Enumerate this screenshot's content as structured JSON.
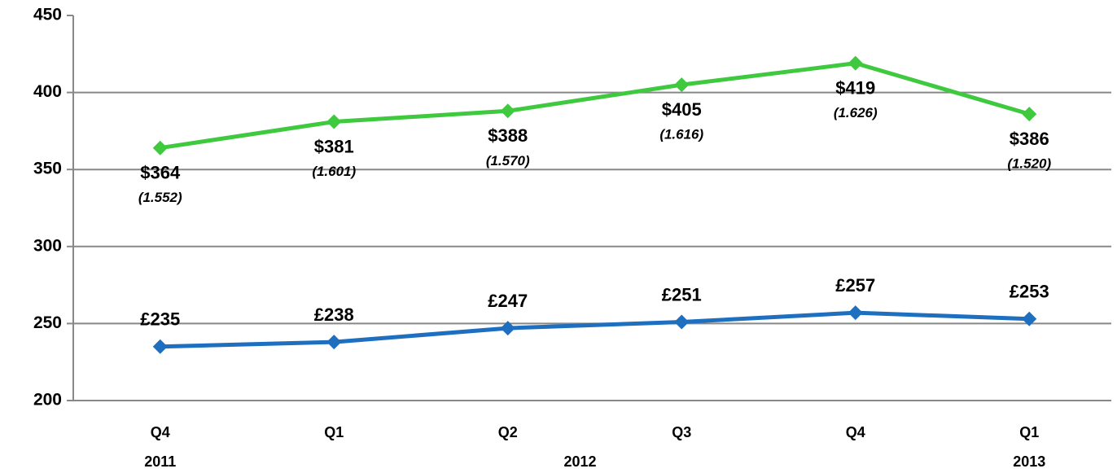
{
  "chart_data": {
    "type": "line",
    "categories": [
      "Q4",
      "Q1",
      "Q2",
      "Q3",
      "Q4",
      "Q1"
    ],
    "groups": [
      {
        "label": "2011",
        "start": 0,
        "end": 0
      },
      {
        "label": "2012",
        "start": 1,
        "end": 4
      },
      {
        "label": "2013",
        "start": 5,
        "end": 5
      }
    ],
    "series": [
      {
        "color": "#3ec93e",
        "values": [
          364,
          381,
          388,
          405,
          419,
          386
        ],
        "value_labels": [
          "$364",
          "$381",
          "$388",
          "$405",
          "$419",
          "$386"
        ],
        "sublabels": [
          "(1.552)",
          "(1.601)",
          "(1.570)",
          "(1.616)",
          "(1.626)",
          "(1.520)"
        ],
        "label_position": "below"
      },
      {
        "color": "#1f6fc0",
        "values": [
          235,
          238,
          247,
          251,
          257,
          253
        ],
        "value_labels": [
          "£235",
          "£238",
          "£247",
          "£251",
          "£257",
          "£253"
        ],
        "label_position": "above"
      }
    ],
    "ylim": [
      200,
      450
    ],
    "yticks": [
      200,
      250,
      300,
      350,
      400,
      450
    ],
    "grid": true
  }
}
